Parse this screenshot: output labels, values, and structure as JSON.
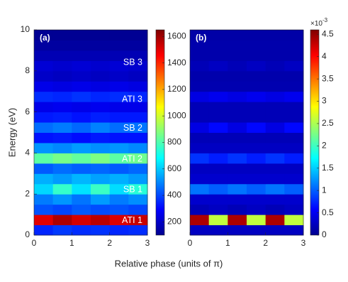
{
  "shared_xlabel": "Relative phase (units of π)",
  "chart_data": [
    {
      "type": "heatmap",
      "panel_label": "(a)",
      "ylabel": "Energy (eV)",
      "x": [
        0.25,
        0.75,
        1.25,
        1.75,
        2.25,
        2.75
      ],
      "y": [
        0.25,
        0.75,
        1.25,
        1.75,
        2.25,
        2.75,
        3.25,
        3.75,
        4.25,
        4.75,
        5.25,
        5.75,
        6.25,
        6.75,
        7.25,
        7.75,
        8.25,
        8.75,
        9.25,
        9.75
      ],
      "z": [
        [
          350,
          380,
          360,
          370,
          350,
          360
        ],
        [
          1500,
          1580,
          1520,
          1560,
          1510,
          1540
        ],
        [
          420,
          400,
          430,
          410,
          420,
          400
        ],
        [
          480,
          520,
          470,
          530,
          480,
          510
        ],
        [
          620,
          760,
          640,
          770,
          630,
          740
        ],
        [
          560,
          530,
          570,
          540,
          560,
          530
        ],
        [
          430,
          460,
          440,
          450,
          430,
          450
        ],
        [
          820,
          860,
          830,
          870,
          820,
          850
        ],
        [
          520,
          500,
          530,
          510,
          520,
          500
        ],
        [
          320,
          330,
          310,
          330,
          320,
          320
        ],
        [
          460,
          480,
          450,
          490,
          460,
          470
        ],
        [
          330,
          340,
          320,
          340,
          330,
          330
        ],
        [
          260,
          270,
          260,
          270,
          260,
          260
        ],
        [
          360,
          350,
          370,
          350,
          360,
          350
        ],
        [
          260,
          250,
          260,
          250,
          260,
          250
        ],
        [
          210,
          200,
          210,
          200,
          210,
          200
        ],
        [
          230,
          220,
          230,
          220,
          230,
          220
        ],
        [
          180,
          180,
          180,
          180,
          180,
          180
        ],
        [
          150,
          150,
          150,
          150,
          150,
          150
        ],
        [
          130,
          130,
          130,
          130,
          130,
          130
        ]
      ],
      "xlim": [
        0,
        3
      ],
      "ylim": [
        0,
        10
      ],
      "xticks": [
        0,
        1,
        2,
        3
      ],
      "yticks": [
        0,
        2,
        4,
        6,
        8,
        10
      ],
      "clim": [
        100,
        1650
      ],
      "cticks": [
        200,
        400,
        600,
        800,
        1000,
        1200,
        1400,
        1600
      ],
      "colormap": "jet",
      "annotations": [
        "ATI 1",
        "SB 1",
        "ATI 2",
        "SB 2",
        "ATI 3",
        "SB 3"
      ]
    },
    {
      "type": "heatmap",
      "panel_label": "(b)",
      "x": [
        0.25,
        0.75,
        1.25,
        1.75,
        2.25,
        2.75
      ],
      "y": [
        0.25,
        0.75,
        1.25,
        1.75,
        2.25,
        2.75,
        3.25,
        3.75,
        4.25,
        4.75,
        5.25,
        5.75,
        6.25,
        6.75,
        7.25,
        7.75,
        8.25,
        8.75,
        9.25,
        9.75
      ],
      "z": [
        [
          0.3,
          0.3,
          0.3,
          0.3,
          0.3,
          0.3
        ],
        [
          4.4,
          2.6,
          4.4,
          2.6,
          4.4,
          2.6
        ],
        [
          0.25,
          0.3,
          0.25,
          0.3,
          0.25,
          0.3
        ],
        [
          0.35,
          0.35,
          0.35,
          0.35,
          0.35,
          0.35
        ],
        [
          1.1,
          1.0,
          1.1,
          1.0,
          1.1,
          1.0
        ],
        [
          0.35,
          0.35,
          0.35,
          0.35,
          0.35,
          0.35
        ],
        [
          0.3,
          0.3,
          0.3,
          0.3,
          0.3,
          0.3
        ],
        [
          0.8,
          0.7,
          0.8,
          0.7,
          0.8,
          0.7
        ],
        [
          0.3,
          0.3,
          0.3,
          0.3,
          0.3,
          0.3
        ],
        [
          0.25,
          0.25,
          0.25,
          0.25,
          0.25,
          0.25
        ],
        [
          0.45,
          0.6,
          0.45,
          0.6,
          0.45,
          0.6
        ],
        [
          0.25,
          0.25,
          0.25,
          0.25,
          0.25,
          0.25
        ],
        [
          0.25,
          0.25,
          0.25,
          0.25,
          0.25,
          0.25
        ],
        [
          0.45,
          0.5,
          0.45,
          0.5,
          0.45,
          0.5
        ],
        [
          0.22,
          0.22,
          0.22,
          0.22,
          0.22,
          0.22
        ],
        [
          0.2,
          0.2,
          0.2,
          0.2,
          0.2,
          0.2
        ],
        [
          0.25,
          0.3,
          0.25,
          0.3,
          0.25,
          0.3
        ],
        [
          0.2,
          0.2,
          0.2,
          0.2,
          0.2,
          0.2
        ],
        [
          0.2,
          0.2,
          0.2,
          0.2,
          0.2,
          0.2
        ],
        [
          0.18,
          0.18,
          0.18,
          0.18,
          0.18,
          0.18
        ]
      ],
      "xlim": [
        0,
        3
      ],
      "ylim": [
        0,
        10
      ],
      "xticks": [
        0,
        1,
        2,
        3
      ],
      "clim": [
        0,
        4.6
      ],
      "cticks": [
        0,
        0.5,
        1,
        1.5,
        2,
        2.5,
        3,
        3.5,
        4,
        4.5
      ],
      "colormap": "jet",
      "colorbar_multiplier": {
        "base": "×10",
        "exponent": "-3"
      }
    }
  ]
}
